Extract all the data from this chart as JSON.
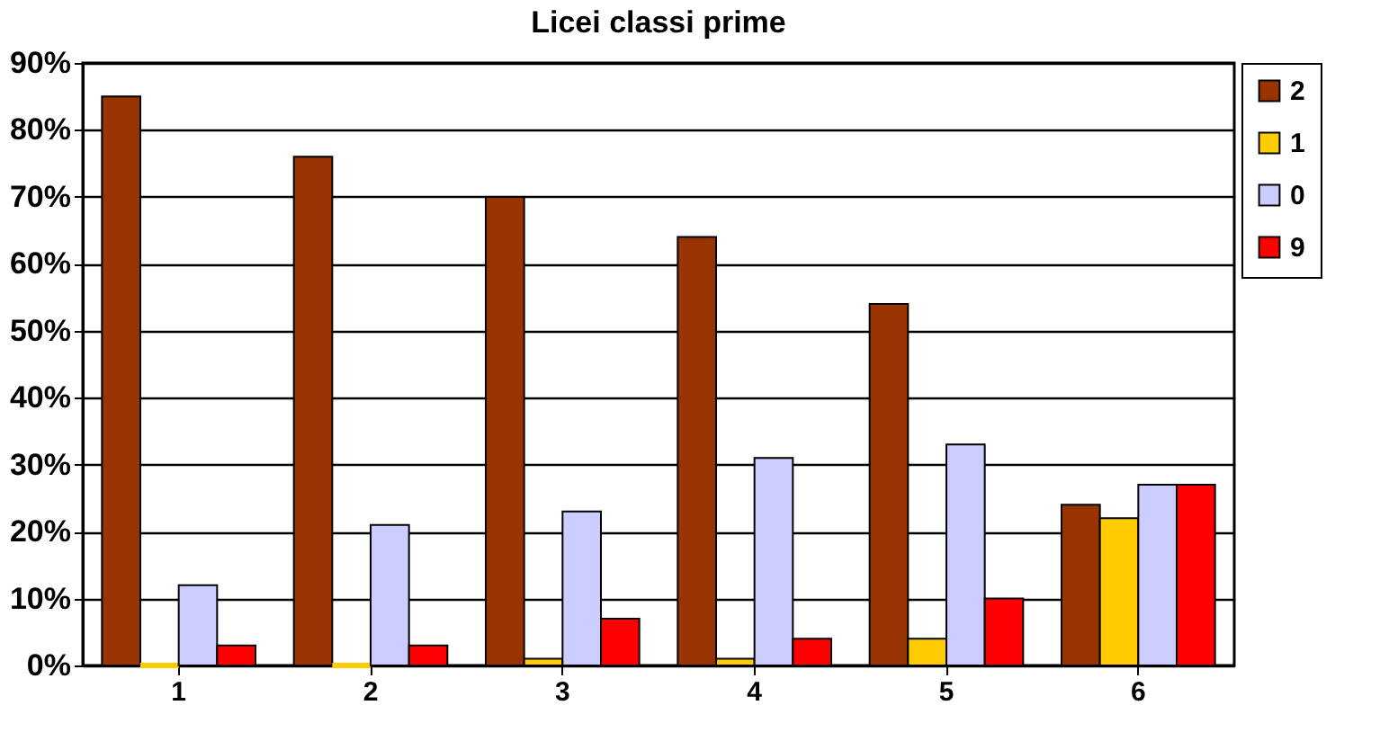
{
  "chart_data": {
    "type": "bar",
    "title": "Licei classi prime",
    "categories": [
      "1",
      "2",
      "3",
      "4",
      "5",
      "6"
    ],
    "series": [
      {
        "name": "2",
        "color": "#993300",
        "values": [
          85,
          76,
          70,
          64,
          54,
          24
        ]
      },
      {
        "name": "1",
        "color": "#ffcc00",
        "values": [
          0,
          0,
          1,
          1,
          4,
          22
        ]
      },
      {
        "name": "0",
        "color": "#ccccff",
        "values": [
          12,
          21,
          23,
          31,
          33,
          27
        ]
      },
      {
        "name": "9",
        "color": "#ff0000",
        "values": [
          3,
          3,
          7,
          4,
          10,
          27
        ]
      }
    ],
    "ylim": [
      0,
      90
    ],
    "yticks": [
      {
        "value": 0,
        "label": "0%"
      },
      {
        "value": 10,
        "label": "10%"
      },
      {
        "value": 20,
        "label": "20%"
      },
      {
        "value": 30,
        "label": "30%"
      },
      {
        "value": 40,
        "label": "40%"
      },
      {
        "value": 50,
        "label": "50%"
      },
      {
        "value": 60,
        "label": "60%"
      },
      {
        "value": 70,
        "label": "70%"
      },
      {
        "value": 80,
        "label": "80%"
      },
      {
        "value": 90,
        "label": "90%"
      }
    ],
    "grid": "y",
    "legend": "top right"
  }
}
